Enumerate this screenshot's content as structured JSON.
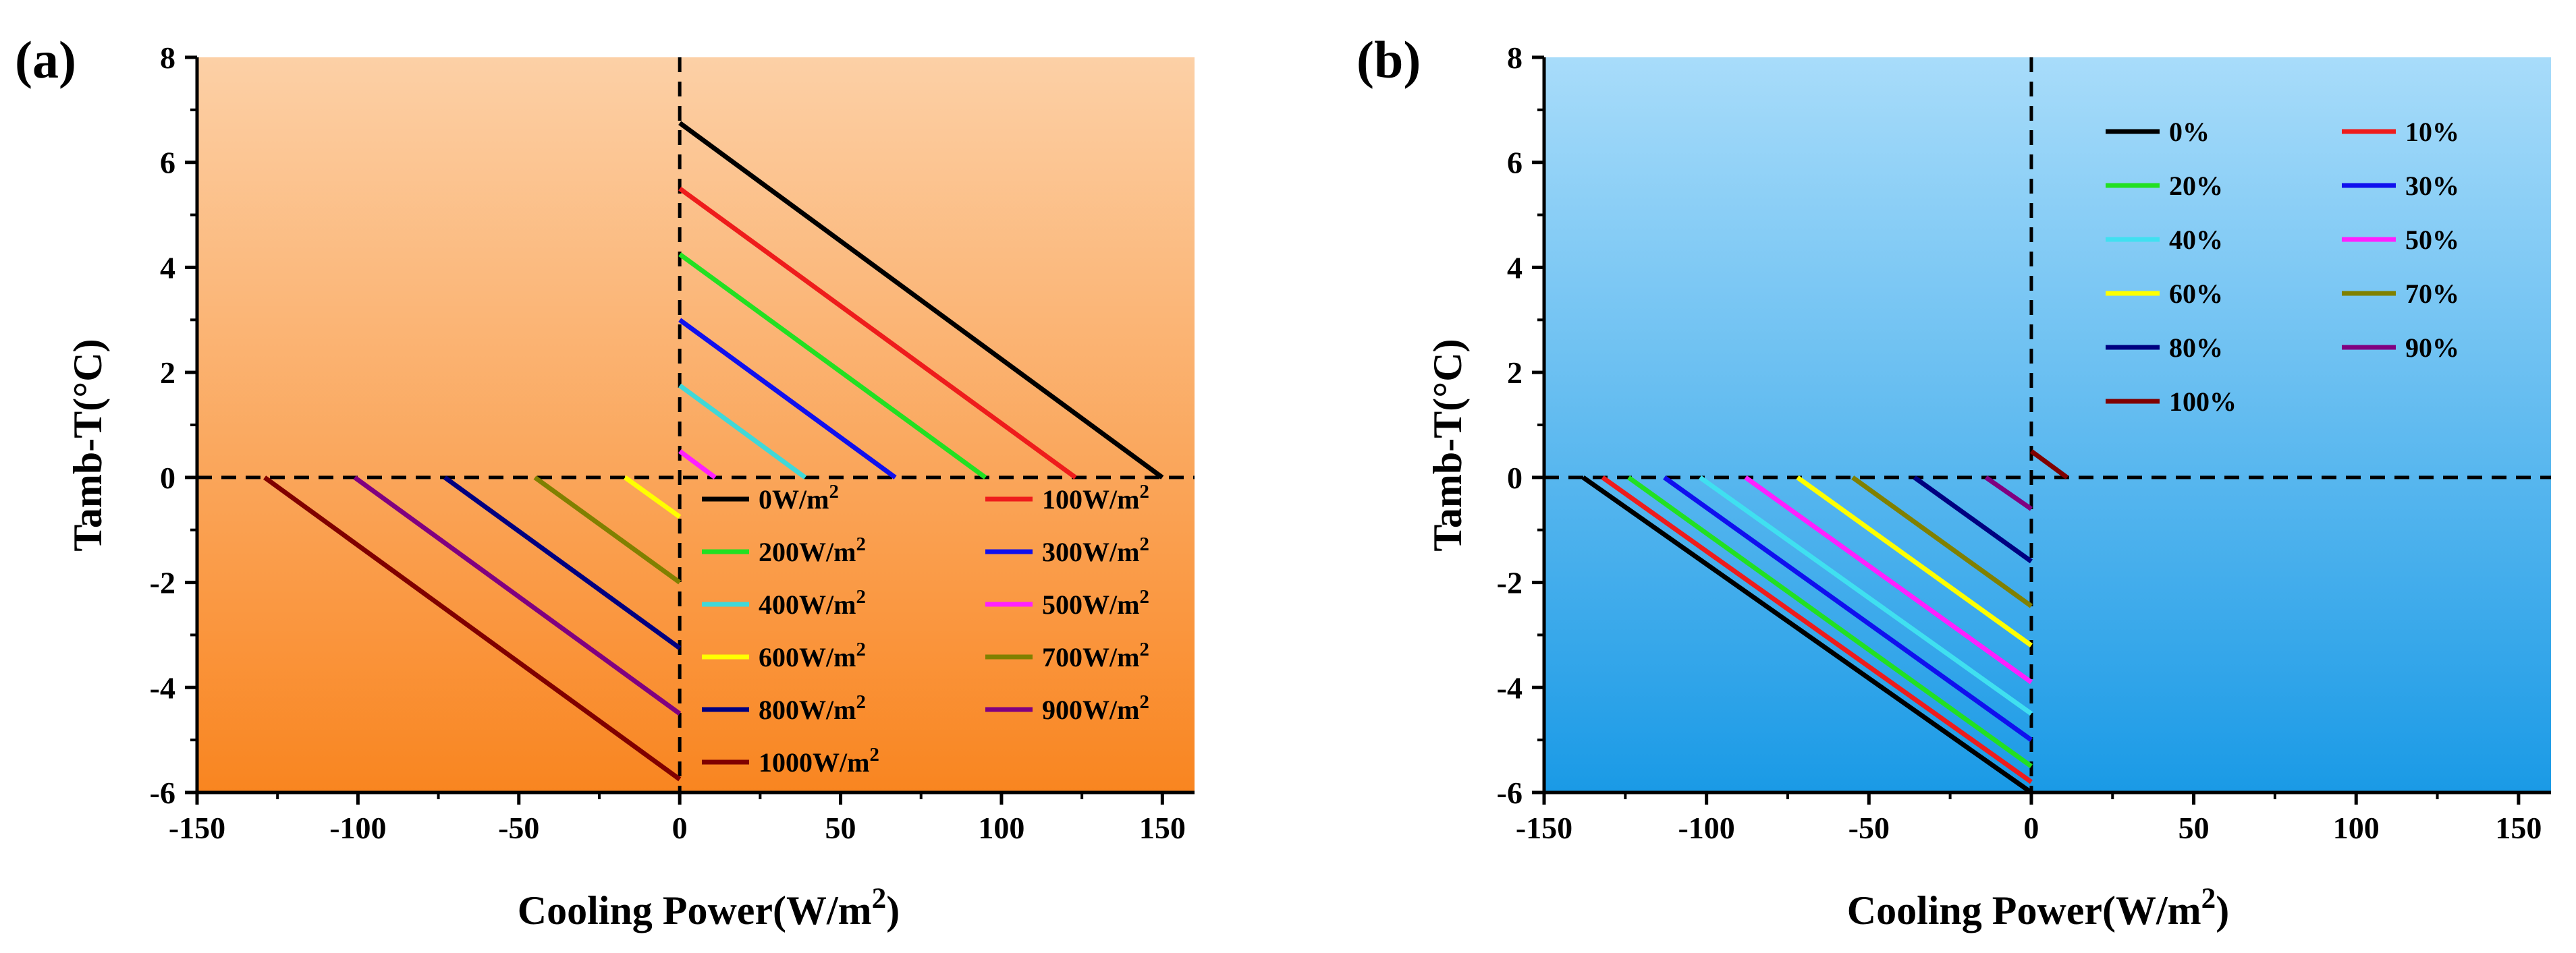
{
  "chart_data": [
    {
      "panel_label": "(a)",
      "type": "line",
      "xlabel": "Cooling Power(W/m",
      "xlabel_sup": "2",
      "xlabel_end": ")",
      "ylabel": "Tamb-T(°C)",
      "xlim": [
        -150,
        160
      ],
      "ylim": [
        -6,
        8
      ],
      "xticks": [
        -150,
        -100,
        -50,
        0,
        50,
        100,
        150
      ],
      "yticks": [
        -6,
        -4,
        -2,
        0,
        2,
        4,
        6,
        8
      ],
      "background_gradient": [
        "#fcd0a6",
        "#f98520"
      ],
      "reference_lines": {
        "x": 0,
        "y": 0,
        "style": "dashed"
      },
      "legend": {
        "position": "lower-right",
        "columns": 2
      },
      "series": [
        {
          "name": "0W/m",
          "sup": "2",
          "color": "#000000",
          "x": [
            0,
            150
          ],
          "y": [
            6.75,
            0
          ]
        },
        {
          "name": "100W/m",
          "sup": "2",
          "color": "#ee1c1c",
          "x": [
            0,
            123
          ],
          "y": [
            5.5,
            0
          ]
        },
        {
          "name": "200W/m",
          "sup": "2",
          "color": "#22e022",
          "x": [
            0,
            95
          ],
          "y": [
            4.25,
            0
          ]
        },
        {
          "name": "300W/m",
          "sup": "2",
          "color": "#1010ee",
          "x": [
            0,
            67
          ],
          "y": [
            3.0,
            0
          ]
        },
        {
          "name": "400W/m",
          "sup": "2",
          "color": "#40d8d8",
          "x": [
            0,
            39
          ],
          "y": [
            1.75,
            0
          ]
        },
        {
          "name": "500W/m",
          "sup": "2",
          "color": "#ff20ff",
          "x": [
            0,
            11
          ],
          "y": [
            0.5,
            0
          ]
        },
        {
          "name": "600W/m",
          "sup": "2",
          "color": "#ffff00",
          "x": [
            -17,
            0
          ],
          "y": [
            0,
            -0.75
          ]
        },
        {
          "name": "700W/m",
          "sup": "2",
          "color": "#808000",
          "x": [
            -45,
            0
          ],
          "y": [
            0,
            -2.0
          ]
        },
        {
          "name": "800W/m",
          "sup": "2",
          "color": "#000080",
          "x": [
            -73,
            0
          ],
          "y": [
            0,
            -3.25
          ]
        },
        {
          "name": "900W/m",
          "sup": "2",
          "color": "#800080",
          "x": [
            -101,
            0
          ],
          "y": [
            0,
            -4.5
          ]
        },
        {
          "name": "1000W/m",
          "sup": "2",
          "color": "#800000",
          "x": [
            -129,
            0
          ],
          "y": [
            0,
            -5.75
          ]
        }
      ]
    },
    {
      "panel_label": "(b)",
      "type": "line",
      "xlabel": "Cooling Power(W/m",
      "xlabel_sup": "2",
      "xlabel_end": ")",
      "ylabel": "Tamb-T(°C)",
      "xlim": [
        -150,
        160
      ],
      "ylim": [
        -6,
        8
      ],
      "xticks": [
        -150,
        -100,
        -50,
        0,
        50,
        100,
        150
      ],
      "yticks": [
        -6,
        -4,
        -2,
        0,
        2,
        4,
        6,
        8
      ],
      "background_gradient": [
        "#a8dcfa",
        "#1a9ae6"
      ],
      "reference_lines": {
        "x": 0,
        "y": 0,
        "style": "dashed"
      },
      "legend": {
        "position": "upper-right",
        "columns": 2
      },
      "series": [
        {
          "name": "0%",
          "color": "#000000",
          "x": [
            -138,
            0
          ],
          "y": [
            0,
            -6.0
          ]
        },
        {
          "name": "10%",
          "color": "#ee1c1c",
          "x": [
            -132,
            0
          ],
          "y": [
            0,
            -5.8
          ]
        },
        {
          "name": "20%",
          "color": "#22e022",
          "x": [
            -124,
            0
          ],
          "y": [
            0,
            -5.5
          ]
        },
        {
          "name": "30%",
          "color": "#1010ee",
          "x": [
            -113,
            0
          ],
          "y": [
            0,
            -5.0
          ]
        },
        {
          "name": "40%",
          "color": "#40e0f0",
          "x": [
            -102,
            0
          ],
          "y": [
            0,
            -4.5
          ]
        },
        {
          "name": "50%",
          "color": "#ff20ff",
          "x": [
            -88,
            0
          ],
          "y": [
            0,
            -3.9
          ]
        },
        {
          "name": "60%",
          "color": "#ffff00",
          "x": [
            -72,
            0
          ],
          "y": [
            0,
            -3.2
          ]
        },
        {
          "name": "70%",
          "color": "#808000",
          "x": [
            -55,
            0
          ],
          "y": [
            0,
            -2.45
          ]
        },
        {
          "name": "80%",
          "color": "#000080",
          "x": [
            -36,
            0
          ],
          "y": [
            0,
            -1.6
          ]
        },
        {
          "name": "90%",
          "color": "#800080",
          "x": [
            -14,
            0
          ],
          "y": [
            0,
            -0.6
          ]
        },
        {
          "name": "100%",
          "color": "#800000",
          "x": [
            0,
            11
          ],
          "y": [
            0.5,
            0
          ]
        }
      ]
    }
  ]
}
